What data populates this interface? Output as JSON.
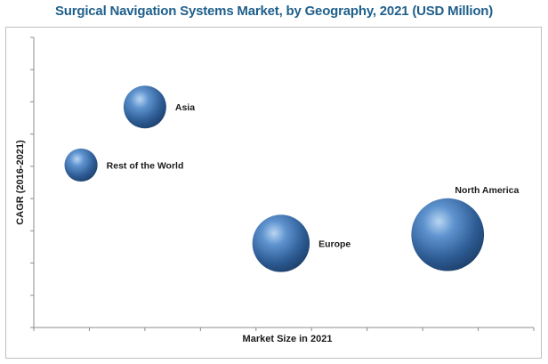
{
  "chart_data": {
    "type": "scatter",
    "title": "Surgical Navigation Systems Market, by Geography, 2021 (USD Million)",
    "xlabel": "Market Size in 2021",
    "ylabel": "CAGR (2016-2021)",
    "xlim": [
      0,
      9
    ],
    "ylim": [
      0,
      10
    ],
    "grid": false,
    "legend": "none",
    "bubble_color": "#3c6fae",
    "series": [
      {
        "points": [
          {
            "label": "Asia",
            "x": 2.0,
            "y": 7.6,
            "size": 1.0
          },
          {
            "label": "Rest of the World",
            "x": 0.85,
            "y": 5.6,
            "size": 0.6
          },
          {
            "label": "Europe",
            "x": 4.45,
            "y": 2.9,
            "size": 1.8
          },
          {
            "label": "North America",
            "x": 7.45,
            "y": 3.2,
            "size": 2.9
          }
        ]
      }
    ]
  }
}
